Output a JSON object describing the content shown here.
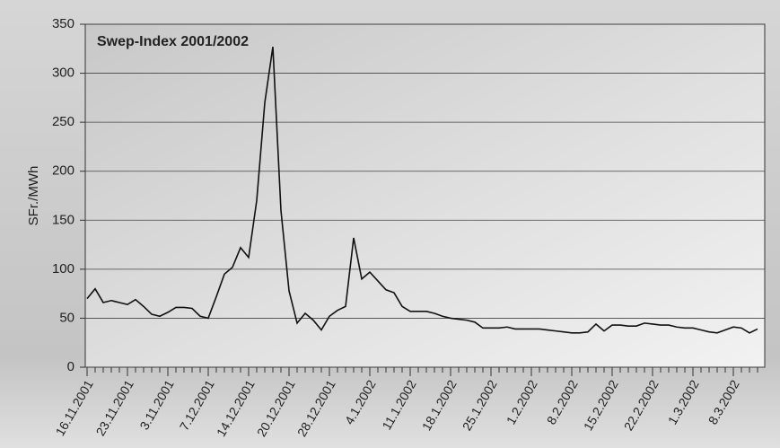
{
  "chart_data": {
    "type": "line",
    "title": "Swep-Index 2001/2002",
    "y_label": "SFr./MWh",
    "categories": [
      "16.11.2001",
      null,
      null,
      null,
      null,
      "23.11.2001",
      null,
      null,
      null,
      null,
      "3.11.2001",
      null,
      null,
      null,
      null,
      "7.12.2001",
      null,
      null,
      null,
      null,
      "14.12.2001",
      null,
      null,
      null,
      null,
      "20.12.2001",
      null,
      null,
      null,
      null,
      "28.12.2001",
      null,
      null,
      null,
      null,
      "4.1.2002",
      null,
      null,
      null,
      null,
      "11.1.2002",
      null,
      null,
      null,
      null,
      "18.1.2002",
      null,
      null,
      null,
      null,
      "25.1.2002",
      null,
      null,
      null,
      null,
      "1.2.2002",
      null,
      null,
      null,
      null,
      "8.2.2002",
      null,
      null,
      null,
      null,
      "15.2.2002",
      null,
      null,
      null,
      null,
      "22.2.2002",
      null,
      null,
      null,
      null,
      "1.3.2002",
      null,
      null,
      null,
      null,
      "8.3.2002",
      null,
      null,
      null
    ],
    "values": [
      70,
      80,
      66,
      68,
      66,
      64,
      69,
      62,
      54,
      52,
      56,
      61,
      61,
      60,
      52,
      50,
      72,
      95,
      102,
      122,
      112,
      170,
      270,
      327,
      160,
      78,
      45,
      55,
      48,
      38,
      52,
      58,
      62,
      132,
      90,
      97,
      88,
      79,
      76,
      62,
      57,
      57,
      57,
      55,
      52,
      50,
      49,
      48,
      46,
      40,
      40,
      40,
      41,
      39,
      39,
      39,
      39,
      38,
      37,
      36,
      35,
      35,
      36,
      44,
      37,
      43,
      43,
      42,
      42,
      45,
      44,
      43,
      43,
      41,
      40,
      40,
      38,
      36,
      35,
      38,
      41,
      40,
      35,
      39
    ],
    "color": "#111111",
    "ylim": [
      0,
      350
    ],
    "yticks": [
      0,
      50,
      100,
      150,
      200,
      250,
      300,
      350
    ],
    "grid": true
  }
}
